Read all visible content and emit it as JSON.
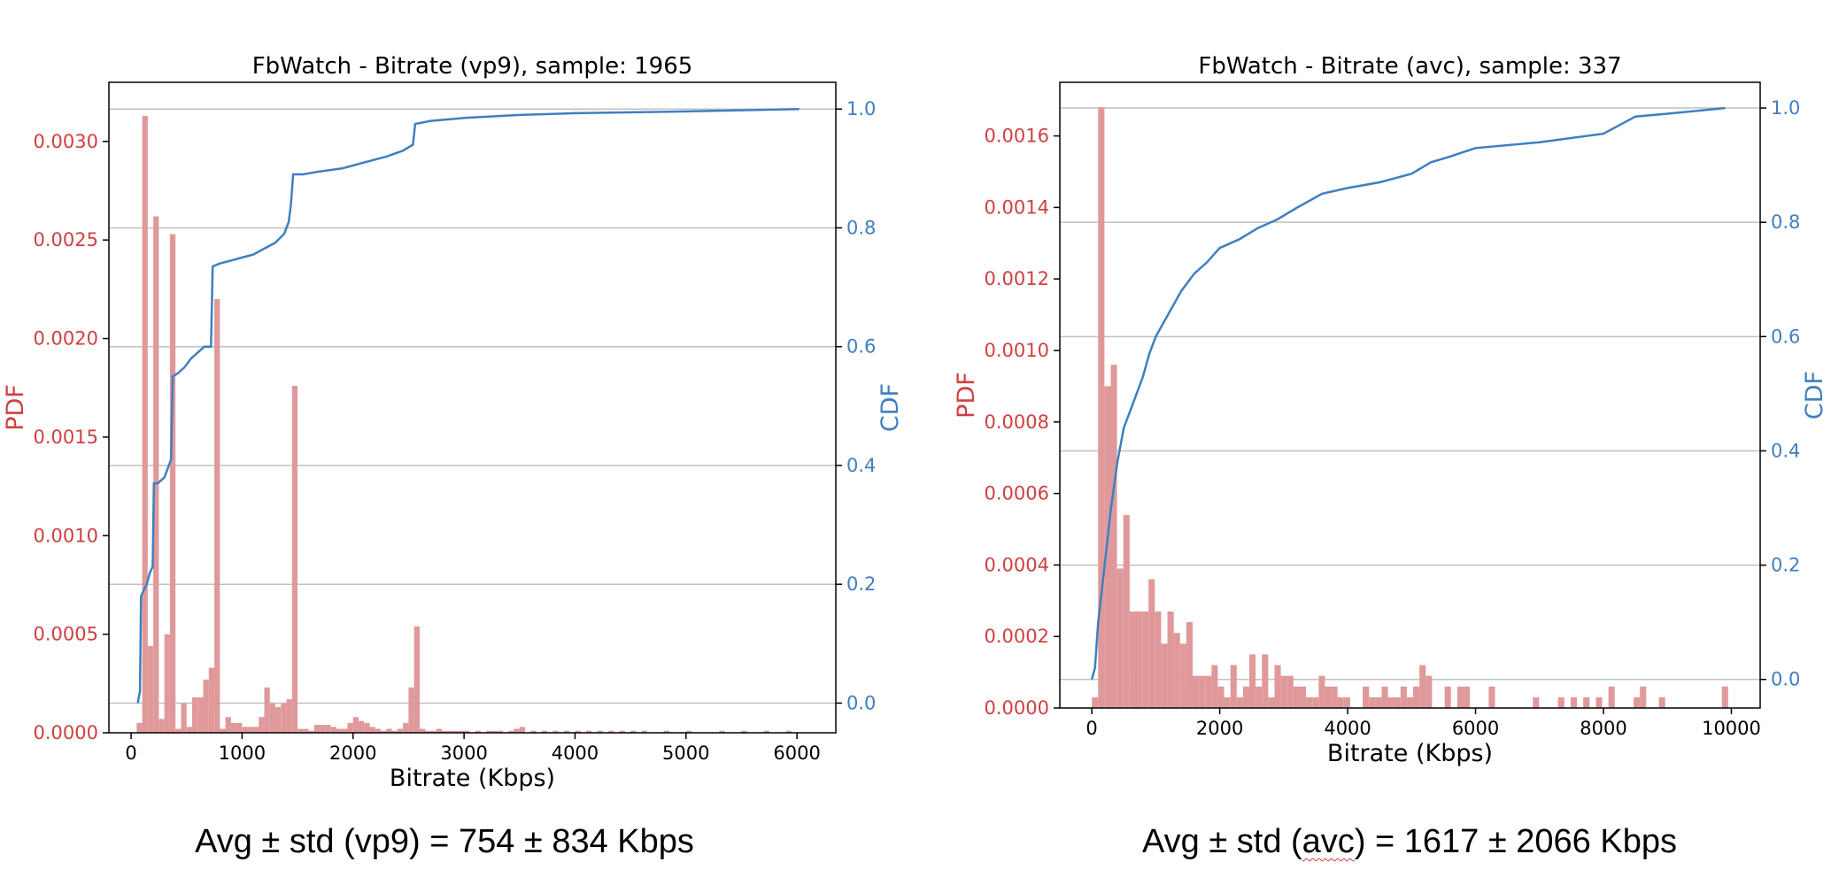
{
  "colors": {
    "pdf": "#d04040",
    "pdf_bar": "#e0999b",
    "cdf": "#3f7fbf",
    "grid": "#c0c0c0"
  },
  "captions": {
    "left": {
      "prefix": "Avg ± std (vp9) = 754 ± 834 Kbps"
    },
    "right": {
      "before": "Avg ± std (",
      "mark": "avc",
      "after": ") = 1617 ± 2066 Kbps"
    }
  },
  "chart_data": [
    {
      "type": "bar",
      "title": "FbWatch - Bitrate (vp9), sample: 1965",
      "xlabel": "Bitrate (Kbps)",
      "ylabel": "PDF",
      "y2label": "CDF",
      "xlim": [
        -200,
        6350
      ],
      "ylim": [
        0,
        0.0033
      ],
      "y2lim": [
        -0.05,
        1.045
      ],
      "xticks": [
        0,
        1000,
        2000,
        3000,
        4000,
        5000,
        6000
      ],
      "yticks": [
        0.0,
        0.0005,
        0.001,
        0.0015,
        0.002,
        0.0025,
        0.003
      ],
      "ytick_labels": [
        "0.0000",
        "0.0005",
        "0.0010",
        "0.0015",
        "0.0020",
        "0.0025",
        "0.0030"
      ],
      "y2ticks": [
        0.0,
        0.2,
        0.4,
        0.6,
        0.8,
        1.0
      ],
      "y2tick_labels": [
        "0.0",
        "0.2",
        "0.4",
        "0.6",
        "0.8",
        "1.0"
      ],
      "grid": "y2",
      "histogram": {
        "bin_width": 50,
        "bins": [
          [
            75,
            5e-05
          ],
          [
            125,
            0.00313
          ],
          [
            175,
            0.00044
          ],
          [
            225,
            0.00262
          ],
          [
            275,
            7e-05
          ],
          [
            325,
            0.0005
          ],
          [
            375,
            0.00253
          ],
          [
            425,
            2e-05
          ],
          [
            475,
            0.00015
          ],
          [
            525,
            3e-05
          ],
          [
            575,
            0.00018
          ],
          [
            625,
            0.00018
          ],
          [
            675,
            0.00027
          ],
          [
            725,
            0.00033
          ],
          [
            775,
            0.0022
          ],
          [
            825,
            2e-05
          ],
          [
            875,
            8e-05
          ],
          [
            925,
            5e-05
          ],
          [
            975,
            5e-05
          ],
          [
            1025,
            3e-05
          ],
          [
            1075,
            3e-05
          ],
          [
            1125,
            3e-05
          ],
          [
            1175,
            8e-05
          ],
          [
            1225,
            0.00023
          ],
          [
            1275,
            0.00015
          ],
          [
            1325,
            0.00013
          ],
          [
            1375,
            0.00015
          ],
          [
            1425,
            0.00017
          ],
          [
            1475,
            0.00176
          ],
          [
            1525,
            2e-05
          ],
          [
            1575,
            2e-05
          ],
          [
            1625,
            1e-05
          ],
          [
            1675,
            4e-05
          ],
          [
            1725,
            4e-05
          ],
          [
            1775,
            4e-05
          ],
          [
            1825,
            3e-05
          ],
          [
            1875,
            2e-05
          ],
          [
            1925,
            2e-05
          ],
          [
            1975,
            5e-05
          ],
          [
            2025,
            8e-05
          ],
          [
            2075,
            6e-05
          ],
          [
            2125,
            5e-05
          ],
          [
            2175,
            3e-05
          ],
          [
            2225,
            2e-05
          ],
          [
            2275,
            1e-05
          ],
          [
            2325,
            2e-05
          ],
          [
            2375,
            1e-05
          ],
          [
            2425,
            2e-05
          ],
          [
            2475,
            5e-05
          ],
          [
            2525,
            0.00023
          ],
          [
            2575,
            0.00054
          ],
          [
            2625,
            2e-05
          ],
          [
            2675,
            1e-05
          ],
          [
            2725,
            1e-05
          ],
          [
            2775,
            2e-05
          ],
          [
            2825,
            1e-05
          ],
          [
            2875,
            1e-05
          ],
          [
            2925,
            1e-05
          ],
          [
            2975,
            1e-05
          ],
          [
            3025,
            1e-05
          ],
          [
            3125,
            1e-05
          ],
          [
            3225,
            1e-05
          ],
          [
            3275,
            1e-05
          ],
          [
            3325,
            1e-05
          ],
          [
            3425,
            1e-05
          ],
          [
            3475,
            2e-05
          ],
          [
            3525,
            3e-05
          ],
          [
            3625,
            1e-05
          ],
          [
            3725,
            1e-05
          ],
          [
            3825,
            1e-05
          ],
          [
            3925,
            1e-05
          ],
          [
            4025,
            1e-05
          ],
          [
            4125,
            1e-05
          ],
          [
            4225,
            1e-05
          ],
          [
            4325,
            1e-05
          ],
          [
            4425,
            1e-05
          ],
          [
            4525,
            1e-05
          ],
          [
            4625,
            1e-05
          ],
          [
            4825,
            1e-05
          ],
          [
            5025,
            1e-05
          ],
          [
            5325,
            1e-05
          ],
          [
            5525,
            1e-05
          ],
          [
            5725,
            1e-05
          ],
          [
            5925,
            1e-05
          ]
        ]
      },
      "cdf": [
        [
          60,
          0.0
        ],
        [
          80,
          0.02
        ],
        [
          90,
          0.18
        ],
        [
          140,
          0.2
        ],
        [
          170,
          0.22
        ],
        [
          195,
          0.23
        ],
        [
          205,
          0.37
        ],
        [
          240,
          0.37
        ],
        [
          300,
          0.38
        ],
        [
          360,
          0.41
        ],
        [
          375,
          0.55
        ],
        [
          420,
          0.555
        ],
        [
          480,
          0.565
        ],
        [
          540,
          0.58
        ],
        [
          600,
          0.59
        ],
        [
          660,
          0.6
        ],
        [
          720,
          0.6
        ],
        [
          735,
          0.735
        ],
        [
          800,
          0.74
        ],
        [
          900,
          0.745
        ],
        [
          1000,
          0.75
        ],
        [
          1100,
          0.755
        ],
        [
          1200,
          0.765
        ],
        [
          1300,
          0.775
        ],
        [
          1380,
          0.79
        ],
        [
          1420,
          0.81
        ],
        [
          1440,
          0.84
        ],
        [
          1460,
          0.89
        ],
        [
          1550,
          0.89
        ],
        [
          1700,
          0.895
        ],
        [
          1900,
          0.9
        ],
        [
          2000,
          0.905
        ],
        [
          2100,
          0.91
        ],
        [
          2300,
          0.92
        ],
        [
          2450,
          0.93
        ],
        [
          2540,
          0.94
        ],
        [
          2560,
          0.975
        ],
        [
          2700,
          0.98
        ],
        [
          3000,
          0.985
        ],
        [
          3500,
          0.99
        ],
        [
          4000,
          0.993
        ],
        [
          5000,
          0.996
        ],
        [
          6020,
          1.0
        ]
      ]
    },
    {
      "type": "bar",
      "title": "FbWatch - Bitrate (avc), sample: 337",
      "xlabel": "Bitrate (Kbps)",
      "ylabel": "PDF",
      "y2label": "CDF",
      "xlim": [
        -500,
        10450
      ],
      "ylim": [
        0,
        0.00175
      ],
      "y2lim": [
        -0.05,
        1.045
      ],
      "xticks": [
        0,
        2000,
        4000,
        6000,
        8000,
        10000
      ],
      "yticks": [
        0.0,
        0.0002,
        0.0004,
        0.0006,
        0.0008,
        0.001,
        0.0012,
        0.0014,
        0.0016
      ],
      "ytick_labels": [
        "0.0000",
        "0.0002",
        "0.0004",
        "0.0006",
        "0.0008",
        "0.0010",
        "0.0012",
        "0.0014",
        "0.0016"
      ],
      "y2ticks": [
        0.0,
        0.2,
        0.4,
        0.6,
        0.8,
        1.0
      ],
      "y2tick_labels": [
        "0.0",
        "0.2",
        "0.4",
        "0.6",
        "0.8",
        "1.0"
      ],
      "grid": "y2",
      "histogram": {
        "bin_width": 98.5,
        "bins": [
          [
            50,
            3e-05
          ],
          [
            148,
            0.00168
          ],
          [
            247,
            0.0009
          ],
          [
            345,
            0.00096
          ],
          [
            444,
            0.00039
          ],
          [
            542,
            0.00054
          ],
          [
            641,
            0.00027
          ],
          [
            739,
            0.00027
          ],
          [
            838,
            0.00027
          ],
          [
            936,
            0.00036
          ],
          [
            1035,
            0.00027
          ],
          [
            1133,
            0.00018
          ],
          [
            1232,
            0.00027
          ],
          [
            1330,
            0.00021
          ],
          [
            1429,
            0.00018
          ],
          [
            1527,
            0.00024
          ],
          [
            1626,
            9e-05
          ],
          [
            1724,
            9e-05
          ],
          [
            1823,
            9e-05
          ],
          [
            1921,
            0.00012
          ],
          [
            2020,
            6e-05
          ],
          [
            2118,
            3e-05
          ],
          [
            2217,
            0.00012
          ],
          [
            2315,
            3e-05
          ],
          [
            2414,
            6e-05
          ],
          [
            2512,
            0.00015
          ],
          [
            2611,
            6e-05
          ],
          [
            2709,
            0.00015
          ],
          [
            2808,
            3e-05
          ],
          [
            2906,
            0.00012
          ],
          [
            3005,
            9e-05
          ],
          [
            3103,
            9e-05
          ],
          [
            3202,
            6e-05
          ],
          [
            3300,
            6e-05
          ],
          [
            3399,
            3e-05
          ],
          [
            3497,
            3e-05
          ],
          [
            3596,
            9e-05
          ],
          [
            3694,
            6e-05
          ],
          [
            3793,
            6e-05
          ],
          [
            3891,
            3e-05
          ],
          [
            3990,
            3e-05
          ],
          [
            4285,
            6e-05
          ],
          [
            4384,
            3e-05
          ],
          [
            4482,
            3e-05
          ],
          [
            4581,
            6e-05
          ],
          [
            4679,
            3e-05
          ],
          [
            4778,
            3e-05
          ],
          [
            4876,
            6e-05
          ],
          [
            4975,
            3e-05
          ],
          [
            5073,
            6e-05
          ],
          [
            5172,
            0.00012
          ],
          [
            5270,
            9e-05
          ],
          [
            5566,
            6e-05
          ],
          [
            5763,
            6e-05
          ],
          [
            5861,
            6e-05
          ],
          [
            6255,
            6e-05
          ],
          [
            6945,
            3e-05
          ],
          [
            7339,
            3e-05
          ],
          [
            7536,
            3e-05
          ],
          [
            7733,
            3e-05
          ],
          [
            7930,
            3e-05
          ],
          [
            8127,
            6e-05
          ],
          [
            8521,
            3e-05
          ],
          [
            8619,
            6e-05
          ],
          [
            8915,
            3e-05
          ],
          [
            9900,
            6e-05
          ]
        ]
      },
      "cdf": [
        [
          0,
          0.0
        ],
        [
          50,
          0.02
        ],
        [
          100,
          0.1
        ],
        [
          150,
          0.15
        ],
        [
          200,
          0.2
        ],
        [
          300,
          0.3
        ],
        [
          400,
          0.38
        ],
        [
          500,
          0.44
        ],
        [
          600,
          0.47
        ],
        [
          700,
          0.5
        ],
        [
          800,
          0.53
        ],
        [
          900,
          0.57
        ],
        [
          1000,
          0.6
        ],
        [
          1200,
          0.64
        ],
        [
          1400,
          0.68
        ],
        [
          1600,
          0.71
        ],
        [
          1800,
          0.73
        ],
        [
          2000,
          0.755
        ],
        [
          2300,
          0.77
        ],
        [
          2600,
          0.79
        ],
        [
          2900,
          0.805
        ],
        [
          3200,
          0.825
        ],
        [
          3600,
          0.85
        ],
        [
          4000,
          0.86
        ],
        [
          4500,
          0.87
        ],
        [
          5000,
          0.885
        ],
        [
          5300,
          0.905
        ],
        [
          5600,
          0.915
        ],
        [
          6000,
          0.93
        ],
        [
          7000,
          0.94
        ],
        [
          8000,
          0.955
        ],
        [
          8500,
          0.985
        ],
        [
          9000,
          0.99
        ],
        [
          9900,
          1.0
        ]
      ]
    }
  ]
}
